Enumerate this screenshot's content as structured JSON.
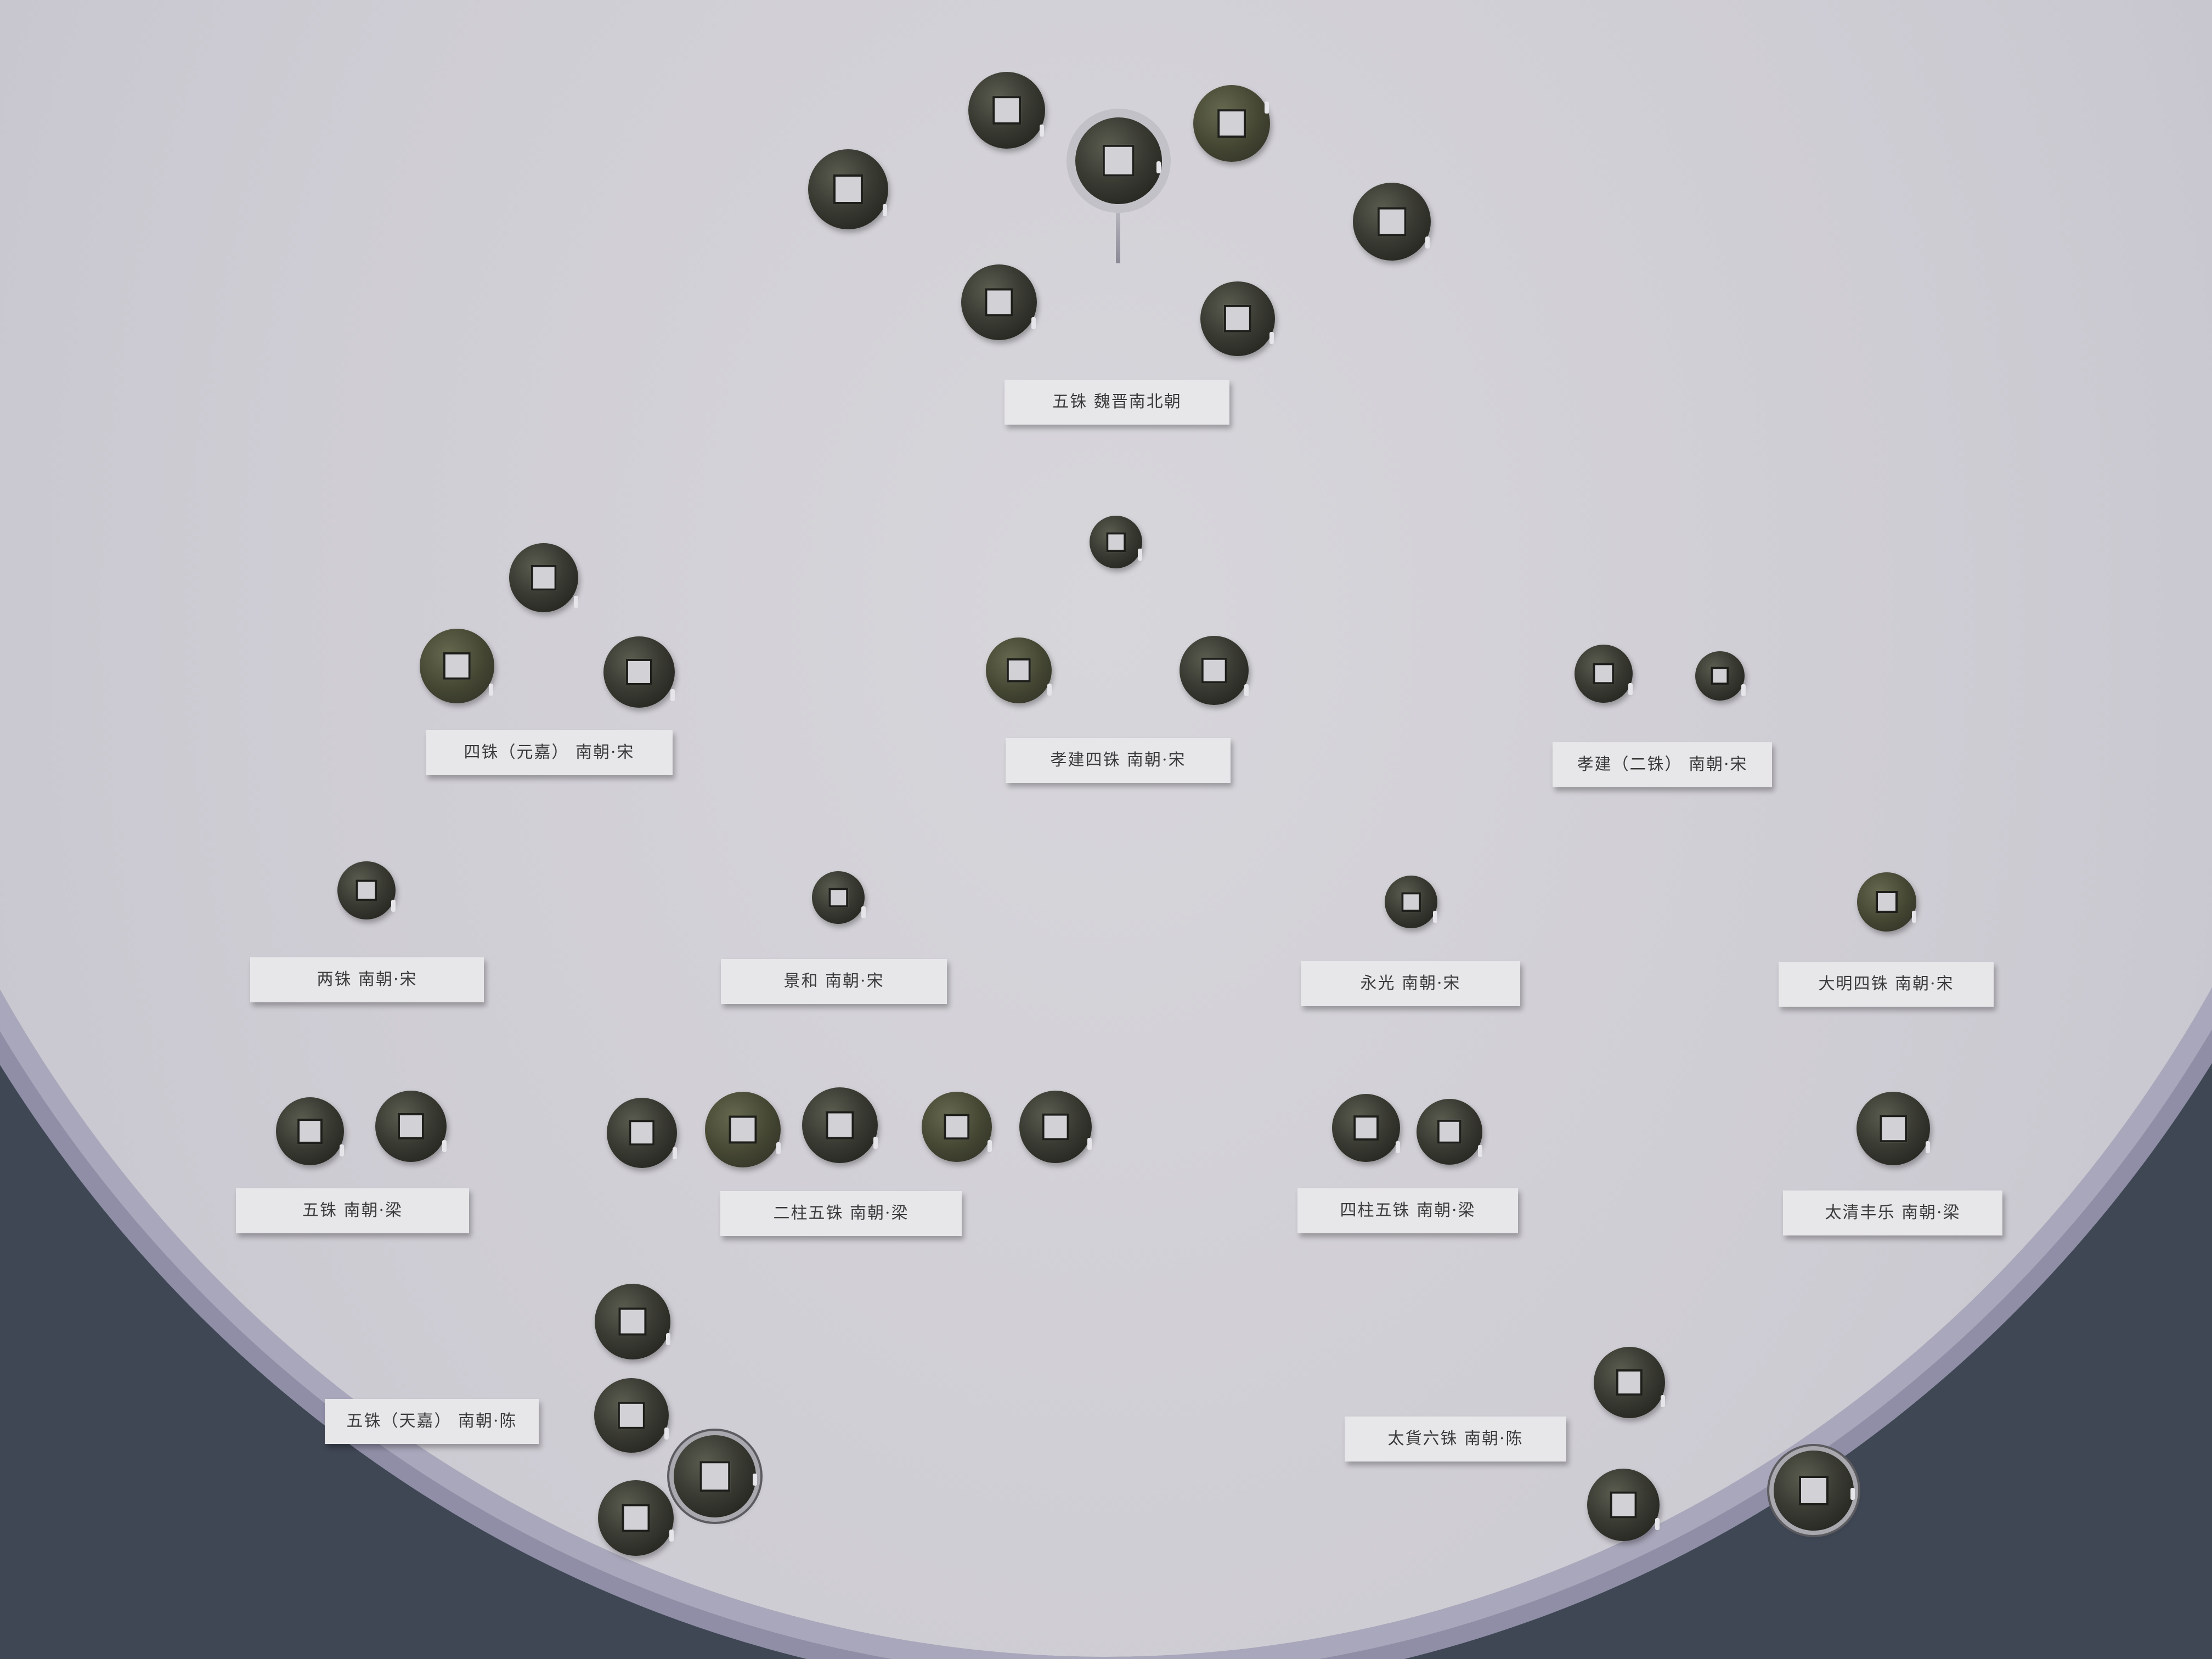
{
  "labels": {
    "wuzhu_weijin": "五铢  魏晋南北朝",
    "sizhu_yuanjia": "四铢（元嘉） 南朝·宋",
    "xiaojian_sizhu": "孝建四铢  南朝·宋",
    "xiaojian_erzhu": "孝建（二铢） 南朝·宋",
    "liangzhu": "两铢  南朝·宋",
    "jinghe": "景和  南朝·宋",
    "yongguang": "永光  南朝·宋",
    "daming_sizhu": "大明四铢  南朝·宋",
    "wuzhu_liang": "五铢  南朝·梁",
    "erzhu_wuzhu": "二柱五铢  南朝·梁",
    "sizhu_wuzhu": "四柱五铢  南朝·梁",
    "taiqing_fengle": "太清丰乐  南朝·梁",
    "wuzhu_tianjia": "五铢（天嘉） 南朝·陈",
    "taihuo_liuzhu": "太貨六铢  南朝·陈"
  },
  "colors": {
    "board": "#d2d1d6",
    "label_bg": "#e7e7ea",
    "coin": "#2c2d26",
    "rim": "#a9a7bb"
  }
}
